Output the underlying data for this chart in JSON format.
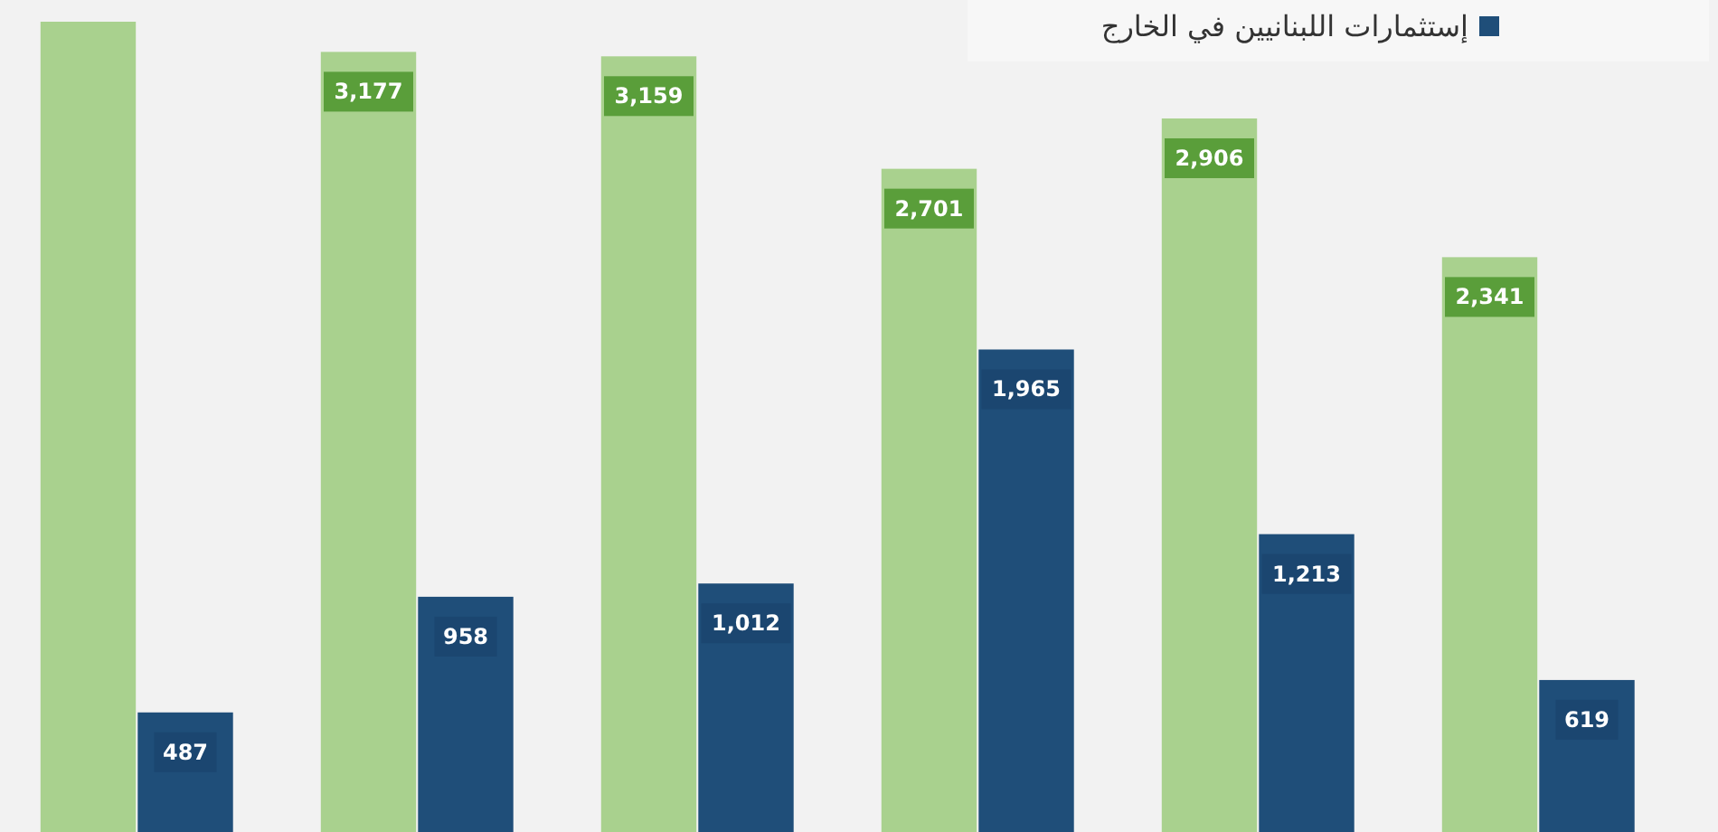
{
  "chart_data": {
    "type": "bar",
    "categories": [
      null,
      null,
      null,
      null,
      null,
      null
    ],
    "series": [
      {
        "color": "#a9d18e",
        "values": [
          3300,
          3177,
          3159,
          2701,
          2906,
          2341
        ],
        "value_labels": [
          null,
          "3,177",
          "3,159",
          "2,701",
          "2,906",
          "2,341"
        ]
      },
      {
        "name": "إستثمارات اللبنانيين في الخارج",
        "color": "#1f4e79",
        "values": [
          487,
          958,
          1012,
          1965,
          1213,
          619
        ],
        "value_labels": [
          "487",
          "958",
          "1,012",
          "1,965",
          "1,213",
          "619"
        ]
      }
    ],
    "legend": "top right"
  }
}
